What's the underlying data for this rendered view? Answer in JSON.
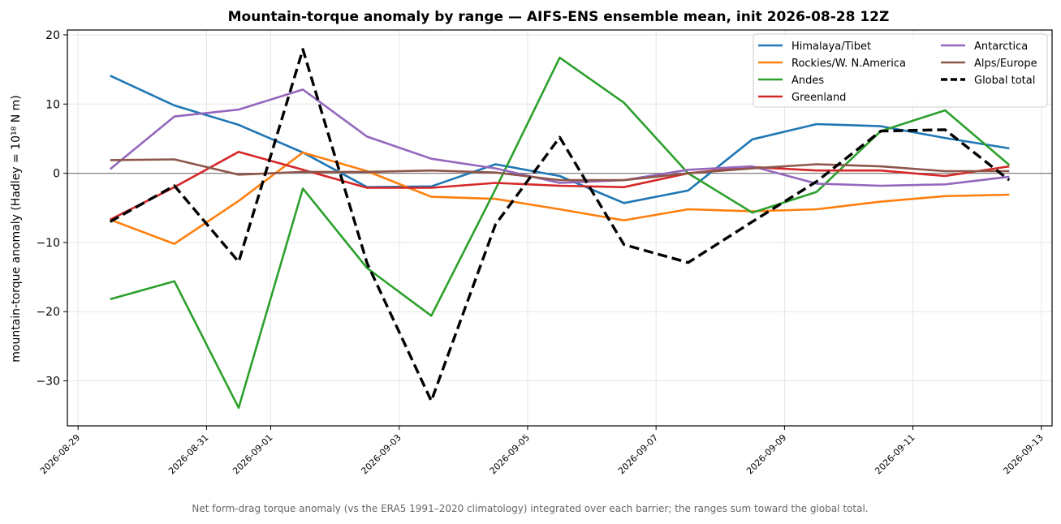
{
  "chart_data": {
    "type": "line",
    "title": "Mountain-torque anomaly by range — AIFS-ENS ensemble mean, init 2026-08-28 12Z",
    "ylabel": "mountain-torque anomaly (Hadley = 10¹⁸ N m)",
    "xlabel": "",
    "caption": "Net form-drag torque anomaly (vs the ERA5 1991–2020 climatology) integrated over each barrier; the ranges sum toward the global total.",
    "ylim": [
      -36.5,
      20.7
    ],
    "yticks": [
      20,
      10,
      0,
      -10,
      -20,
      -30
    ],
    "ytick_labels": [
      "20",
      "10",
      "0",
      "−10",
      "−20",
      "−30"
    ],
    "xlim": [
      "2026-08-28 20:00",
      "2026-09-13 04:00"
    ],
    "xticks": [
      "2026-08-29",
      "2026-08-31",
      "2026-09-01",
      "2026-09-03",
      "2026-09-05",
      "2026-09-07",
      "2026-09-09",
      "2026-09-11",
      "2026-09-13"
    ],
    "x": [
      "2026-08-29 12:00",
      "2026-08-30 12:00",
      "2026-08-31 12:00",
      "2026-09-01 12:00",
      "2026-09-02 12:00",
      "2026-09-03 12:00",
      "2026-09-04 12:00",
      "2026-09-05 12:00",
      "2026-09-06 12:00",
      "2026-09-07 12:00",
      "2026-09-08 12:00",
      "2026-09-09 12:00",
      "2026-09-10 12:00",
      "2026-09-11 12:00",
      "2026-09-12 12:00"
    ],
    "zero_line": true,
    "grid": true,
    "legend_position": "top-right",
    "legend_columns": 2,
    "series": [
      {
        "name": "Himalaya/Tibet",
        "color": "#1f77b4",
        "dash": "solid",
        "values": [
          14.1,
          9.8,
          7.0,
          3.0,
          -2.0,
          -1.9,
          1.3,
          -0.4,
          -4.3,
          -2.5,
          4.9,
          7.1,
          6.8,
          5.1,
          3.6
        ]
      },
      {
        "name": "Rockies/W. N.America",
        "color": "#ff7f0e",
        "dash": "solid",
        "values": [
          -6.7,
          -10.2,
          -4.0,
          3.0,
          0.3,
          -3.4,
          -3.7,
          -5.2,
          -6.8,
          -5.2,
          -5.5,
          -5.2,
          -4.1,
          -3.3,
          -3.1
        ]
      },
      {
        "name": "Andes",
        "color": "#2ca02c",
        "dash": "solid",
        "values": [
          -18.2,
          -15.6,
          -33.9,
          -2.2,
          -13.7,
          -20.6,
          -2.3,
          16.7,
          10.2,
          0.0,
          -5.7,
          -2.7,
          6.1,
          9.1,
          1.2
        ]
      },
      {
        "name": "Greenland",
        "color": "#d62728",
        "dash": "solid",
        "values": [
          -6.7,
          -2.0,
          3.1,
          0.5,
          -2.1,
          -2.1,
          -1.4,
          -1.8,
          -2.0,
          0.0,
          0.9,
          0.4,
          0.4,
          -0.4,
          1.0
        ]
      },
      {
        "name": "Antarctica",
        "color": "#9467bd",
        "dash": "solid",
        "values": [
          0.6,
          8.2,
          9.2,
          12.1,
          5.3,
          2.1,
          0.7,
          -1.4,
          -1.0,
          0.5,
          1.0,
          -1.5,
          -1.8,
          -1.6,
          -0.5
        ]
      },
      {
        "name": "Alps/Europe",
        "color": "#8c564b",
        "dash": "solid",
        "values": [
          1.9,
          2.0,
          -0.2,
          0.2,
          0.2,
          0.4,
          0.1,
          -1.0,
          -1.0,
          0.0,
          0.7,
          1.3,
          1.0,
          0.3,
          0.3
        ]
      },
      {
        "name": "Global total",
        "color": "#000000",
        "dash": "dashed",
        "values": [
          -7.0,
          -1.8,
          -12.8,
          17.9,
          -13.0,
          -32.9,
          -7.4,
          5.2,
          -10.3,
          -12.9,
          -7.0,
          -1.2,
          6.1,
          6.3,
          -1.0
        ]
      }
    ]
  }
}
